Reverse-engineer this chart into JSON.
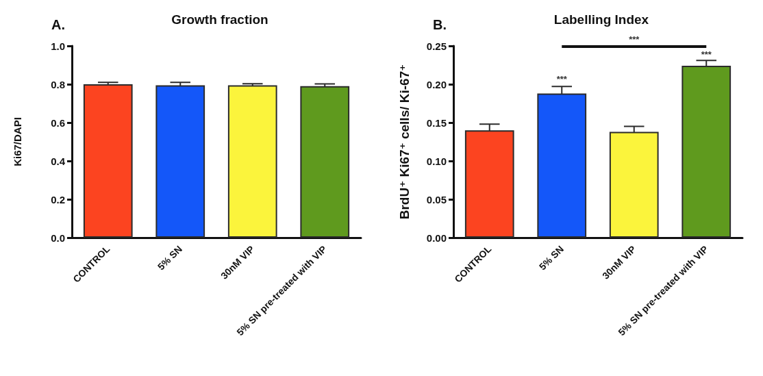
{
  "chart_data": [
    {
      "type": "bar",
      "title": "Growth fraction",
      "ylabel": "Ki67/DAPI",
      "categories": [
        "CONTROL",
        "5% SN",
        "30nM VIP",
        "5% SN pre-treated with VIP"
      ],
      "values": [
        0.8,
        0.795,
        0.795,
        0.79
      ],
      "errors": [
        0.01,
        0.015,
        0.008,
        0.012
      ],
      "colors": [
        "#fc4420",
        "#1457f9",
        "#fbf43c",
        "#5f9a1e"
      ],
      "ylim": [
        0,
        1
      ],
      "yticks": [
        {
          "value": 0,
          "label": "0.0"
        },
        {
          "value": 0.2,
          "label": "0.2"
        },
        {
          "value": 0.4,
          "label": "0.4"
        },
        {
          "value": 0.6,
          "label": "0.6"
        },
        {
          "value": 0.8,
          "label": "0.8"
        },
        {
          "value": 1,
          "label": "1.0"
        }
      ],
      "annotations": [
        "A."
      ]
    },
    {
      "type": "bar",
      "title": "Labelling Index",
      "ylabel": "BrdU⁺ Ki67⁺ cells/ Ki-67⁺",
      "categories": [
        "CONTROL",
        "5% SN",
        "30nM VIP",
        "5% SN pre-treated with VIP"
      ],
      "values": [
        0.14,
        0.188,
        0.138,
        0.224
      ],
      "errors": [
        0.008,
        0.009,
        0.007,
        0.007
      ],
      "colors": [
        "#fc4420",
        "#1457f9",
        "#fbf43c",
        "#5f9a1e"
      ],
      "ylim": [
        0,
        0.25
      ],
      "yticks": [
        {
          "value": 0,
          "label": "0.00"
        },
        {
          "value": 0.05,
          "label": "0.05"
        },
        {
          "value": 0.1,
          "label": "0.10"
        },
        {
          "value": 0.15,
          "label": "0.15"
        },
        {
          "value": 0.2,
          "label": "0.20"
        },
        {
          "value": 0.25,
          "label": "0.25"
        }
      ],
      "annotations": [
        "B.",
        "***",
        {
          "text": "***",
          "x": "5% SN",
          "y": 0.2
        },
        {
          "text": "***",
          "x": "5% SN pre-treated with VIP",
          "y": 0.232
        }
      ]
    }
  ]
}
